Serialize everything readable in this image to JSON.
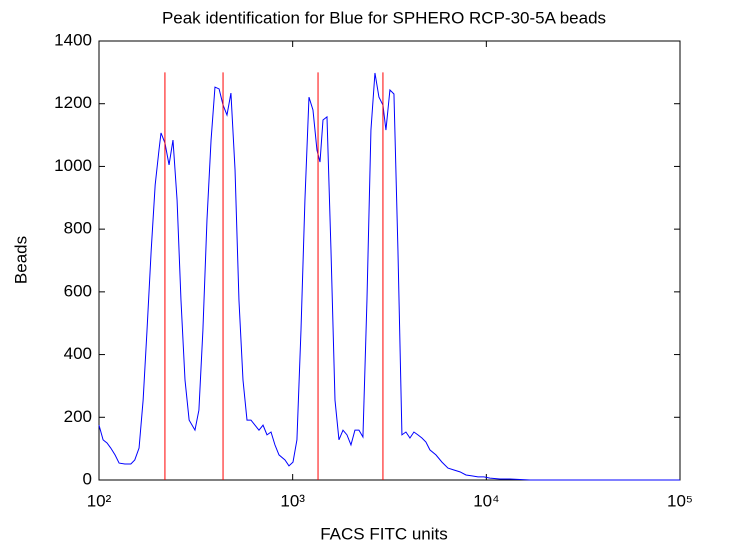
{
  "chart_data": {
    "type": "line",
    "title": "Peak identification for Blue for SPHERO RCP-30-5A beads",
    "x_label": "FACS FITC units",
    "y_label": "Beads",
    "x_scale": "log",
    "xlim": [
      100,
      100000
    ],
    "ylim": [
      0,
      1400
    ],
    "xticks": [
      {
        "value": 100,
        "label": "10²"
      },
      {
        "value": 1000,
        "label": "10³"
      },
      {
        "value": 10000,
        "label": "10⁴"
      },
      {
        "value": 100000,
        "label": "10⁵"
      }
    ],
    "yticks": [
      0,
      200,
      400,
      600,
      800,
      1000,
      1200,
      1400
    ],
    "grid": false,
    "x": [
      100,
      105,
      110,
      115,
      121,
      127,
      136,
      146,
      153,
      161,
      169,
      177,
      186,
      195,
      204,
      209,
      219,
      230,
      241,
      253,
      265,
      278,
      292,
      313,
      328,
      344,
      361,
      379,
      397,
      417,
      437,
      458,
      480,
      504,
      528,
      554,
      581,
      609,
      639,
      670,
      703,
      737,
      773,
      810,
      850,
      913,
      957,
      1004,
      1052,
      1104,
      1157,
      1214,
      1273,
      1335,
      1384,
      1434,
      1504,
      1577,
      1654,
      1734,
      1819,
      1907,
      2000,
      2097,
      2199,
      2306,
      2419,
      2536,
      2660,
      2789,
      2925,
      3031,
      3178,
      3334,
      3496,
      3666,
      3844,
      4032,
      4228,
      4434,
      4650,
      4876,
      5113,
      5492,
      5899,
      6336,
      6805,
      7308,
      7849,
      8430,
      9050,
      9720,
      10440,
      11760,
      13240,
      16800,
      100000
    ],
    "series": [
      {
        "color": "#0000ff",
        "values": [
          175,
          128,
          118,
          102,
          80,
          54,
          51,
          51,
          64,
          102,
          255,
          478,
          733,
          941,
          1052,
          1107,
          1075,
          1005,
          1084,
          893,
          574,
          319,
          191,
          159,
          223,
          478,
          829,
          1084,
          1253,
          1247,
          1196,
          1164,
          1234,
          989,
          574,
          319,
          191,
          191,
          175,
          159,
          175,
          144,
          153,
          112,
          80,
          64,
          45,
          57,
          128,
          478,
          893,
          1221,
          1180,
          1052,
          1014,
          1148,
          1158,
          733,
          255,
          128,
          159,
          144,
          112,
          159,
          159,
          137,
          574,
          1116,
          1298,
          1221,
          1196,
          1116,
          1244,
          1231,
          733,
          144,
          153,
          134,
          153,
          144,
          134,
          121,
          96,
          80,
          57,
          38,
          32,
          26,
          16,
          13,
          10,
          10,
          6,
          3,
          3,
          0,
          0
        ]
      }
    ],
    "peaks": {
      "color": "#ff0000",
      "height": 1300,
      "x": [
        219,
        437,
        1352,
        2925
      ]
    }
  }
}
